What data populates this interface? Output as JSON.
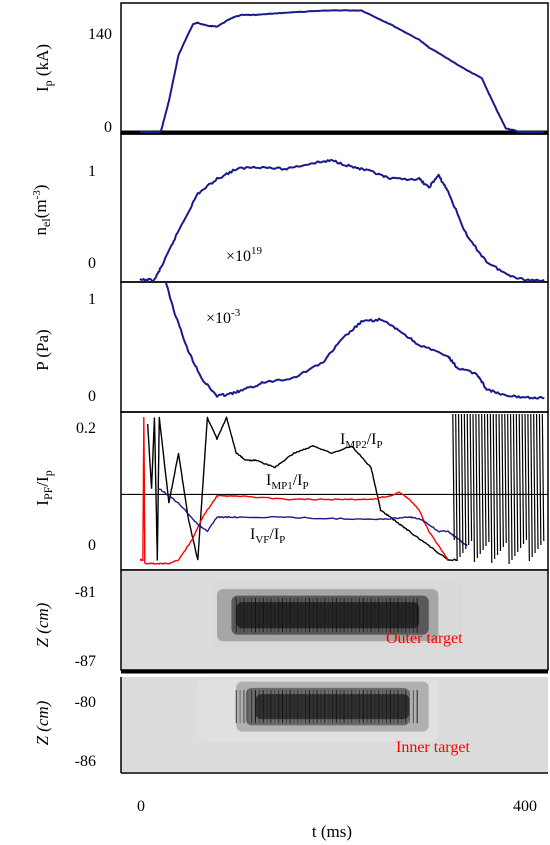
{
  "chart_data": [
    {
      "type": "line",
      "panel": "plasma-current",
      "ylabel": "Ip (kA)",
      "ylabel_main": "I",
      "ylabel_sub": "p",
      "ylabel_rest": " (kA)",
      "yticks": [
        "140",
        "0"
      ],
      "ylim": [
        0,
        165
      ],
      "xlim": [
        0,
        420
      ],
      "series": [
        {
          "color": "#1a1a8c",
          "x": [
            0,
            20,
            22,
            30,
            40,
            55,
            60,
            70,
            80,
            95,
            105,
            120,
            150,
            200,
            230,
            260,
            290,
            300,
            340,
            355,
            370,
            380,
            395,
            400,
            420
          ],
          "y": [
            0,
            0,
            2,
            40,
            100,
            140,
            142,
            138,
            137,
            148,
            152,
            152,
            155,
            158,
            158,
            140,
            120,
            110,
            80,
            70,
            30,
            5,
            0,
            0,
            0
          ]
        }
      ]
    },
    {
      "type": "line",
      "panel": "line-density",
      "ylabel": "nel(m-3)",
      "ylabel_main": "n",
      "ylabel_sub": "el",
      "ylabel_rest": "(m",
      "ylabel_sup": "-3",
      "ylabel_close": ")",
      "yticks": [
        "1",
        "0"
      ],
      "ylim": [
        0,
        1.12
      ],
      "xlim": [
        0,
        420
      ],
      "annotation": {
        "text": "×10",
        "sup": "19"
      },
      "series": [
        {
          "color": "#1a1a8c",
          "x": [
            0,
            15,
            25,
            40,
            60,
            80,
            100,
            120,
            150,
            180,
            200,
            220,
            240,
            260,
            290,
            300,
            310,
            320,
            340,
            360,
            380,
            400,
            420
          ],
          "y": [
            0,
            0,
            0.15,
            0.4,
            0.7,
            0.82,
            0.9,
            0.92,
            0.9,
            0.95,
            0.97,
            0.92,
            0.88,
            0.82,
            0.82,
            0.75,
            0.85,
            0.72,
            0.35,
            0.15,
            0.05,
            0,
            0
          ]
        }
      ]
    },
    {
      "type": "line",
      "panel": "pressure",
      "ylabel": "P (Pa)",
      "yticks": [
        "1",
        "0"
      ],
      "ylim": [
        0,
        1.12
      ],
      "xlim": [
        0,
        420
      ],
      "annotation": {
        "text": "×10",
        "sup": "-3"
      },
      "series": [
        {
          "color": "#1a1a8c",
          "x": [
            20,
            35,
            50,
            65,
            80,
            95,
            110,
            130,
            160,
            190,
            210,
            230,
            250,
            270,
            290,
            320,
            330,
            350,
            360,
            380,
            400,
            420
          ],
          "y": [
            1.25,
            0.8,
            0.45,
            0.2,
            0.06,
            0.08,
            0.12,
            0.18,
            0.22,
            0.35,
            0.55,
            0.7,
            0.72,
            0.62,
            0.5,
            0.4,
            0.3,
            0.25,
            0.12,
            0.06,
            0.05,
            0.04
          ]
        }
      ]
    },
    {
      "type": "line",
      "panel": "coil-currents",
      "ylabel": "IPF/Ip",
      "ylabel_main": "I",
      "ylabel_sub": "PF",
      "ylabel_rest": "/I",
      "ylabel_sub2": "p",
      "yticks": [
        "0.2",
        "0"
      ],
      "ylim": [
        -0.01,
        0.205
      ],
      "xlim": [
        0,
        420
      ],
      "hline": 0.092,
      "labels": [
        {
          "main": "I",
          "sub": "MP2",
          "mid": "/I",
          "sub2": "P"
        },
        {
          "main": "I",
          "sub": "MP1",
          "mid": "/I",
          "sub2": "P"
        },
        {
          "main": "I",
          "sub": "VF",
          "mid": "/I",
          "sub2": "P"
        }
      ],
      "series": [
        {
          "color": "#000000",
          "x": [
            8,
            12,
            15,
            18,
            20,
            30,
            40,
            50,
            60,
            65,
            70,
            80,
            90,
            100,
            110,
            120,
            140,
            160,
            180,
            200,
            220,
            240,
            250,
            260,
            270,
            280,
            300,
            320,
            330
          ],
          "y": [
            0.19,
            0.1,
            0.2,
            0.0,
            0.2,
            0.08,
            0.15,
            0.06,
            0.0,
            0.1,
            0.2,
            0.17,
            0.2,
            0.15,
            0.14,
            0.14,
            0.13,
            0.15,
            0.16,
            0.15,
            0.16,
            0.13,
            0.07,
            0.06,
            0.05,
            0.04,
            0.02,
            0.0,
            0.0
          ]
        },
        {
          "color": "#ff0000",
          "x": [
            0,
            3,
            4,
            5,
            20,
            30,
            40,
            55,
            65,
            75,
            80,
            90,
            100,
            150,
            200,
            240,
            260,
            270,
            280,
            290,
            300,
            320
          ],
          "y": [
            0,
            0,
            0.2,
            -0.005,
            -0.005,
            -0.005,
            0.0,
            0.03,
            0.06,
            0.08,
            0.09,
            0.09,
            0.09,
            0.085,
            0.085,
            0.085,
            0.09,
            0.095,
            0.085,
            0.07,
            0.04,
            0.0
          ]
        },
        {
          "color": "#1a1a8c",
          "x": [
            20,
            30,
            40,
            60,
            70,
            80,
            90,
            100,
            150,
            200,
            250,
            280,
            290,
            300,
            310,
            320,
            330,
            340
          ],
          "y": [
            0.1,
            0.09,
            0.08,
            0.05,
            0.04,
            0.06,
            0.06,
            0.06,
            0.06,
            0.058,
            0.057,
            0.06,
            0.058,
            0.05,
            0.04,
            0.04,
            0.03,
            0.02
          ]
        }
      ]
    },
    {
      "type": "heatmap",
      "panel": "outer-target",
      "ylabel": "Z (cm)",
      "ylabel_z": "Z",
      "ylabel_unit": "(cm)",
      "yticks": [
        "-81",
        "-87"
      ],
      "label": "Outer target",
      "xlim": [
        0,
        420
      ],
      "bands": [
        {
          "x": [
            75,
            335
          ],
          "shade": "#d9d9d9"
        },
        {
          "x": [
            80,
            310
          ],
          "shade": "#a6a6a6"
        },
        {
          "x": [
            95,
            300
          ],
          "shade": "#595959"
        },
        {
          "x": [
            100,
            290
          ],
          "shade": "#262626"
        }
      ]
    },
    {
      "type": "heatmap",
      "panel": "inner-target",
      "ylabel": "Z (cm)",
      "ylabel_z": "Z",
      "ylabel_unit": "(cm)",
      "yticks": [
        "-80",
        "-86"
      ],
      "label": "Inner target",
      "xlim": [
        0,
        420
      ],
      "bands": [
        {
          "x": [
            60,
            310
          ],
          "shade": "#e0e0e0"
        },
        {
          "x": [
            100,
            300
          ],
          "shade": "#b0b0b0"
        },
        {
          "x": [
            110,
            280
          ],
          "shade": "#6a6a6a"
        },
        {
          "x": [
            120,
            280
          ],
          "shade": "#303030"
        }
      ]
    }
  ],
  "xaxis": {
    "ticks": [
      "0",
      "400"
    ],
    "tick_values": [
      0,
      400
    ],
    "label": "t (ms)"
  },
  "colors": {
    "navy": "#1a1a8c",
    "red": "#ff0000",
    "black": "#000000",
    "heatmap_bg": "#dcdcdc"
  }
}
